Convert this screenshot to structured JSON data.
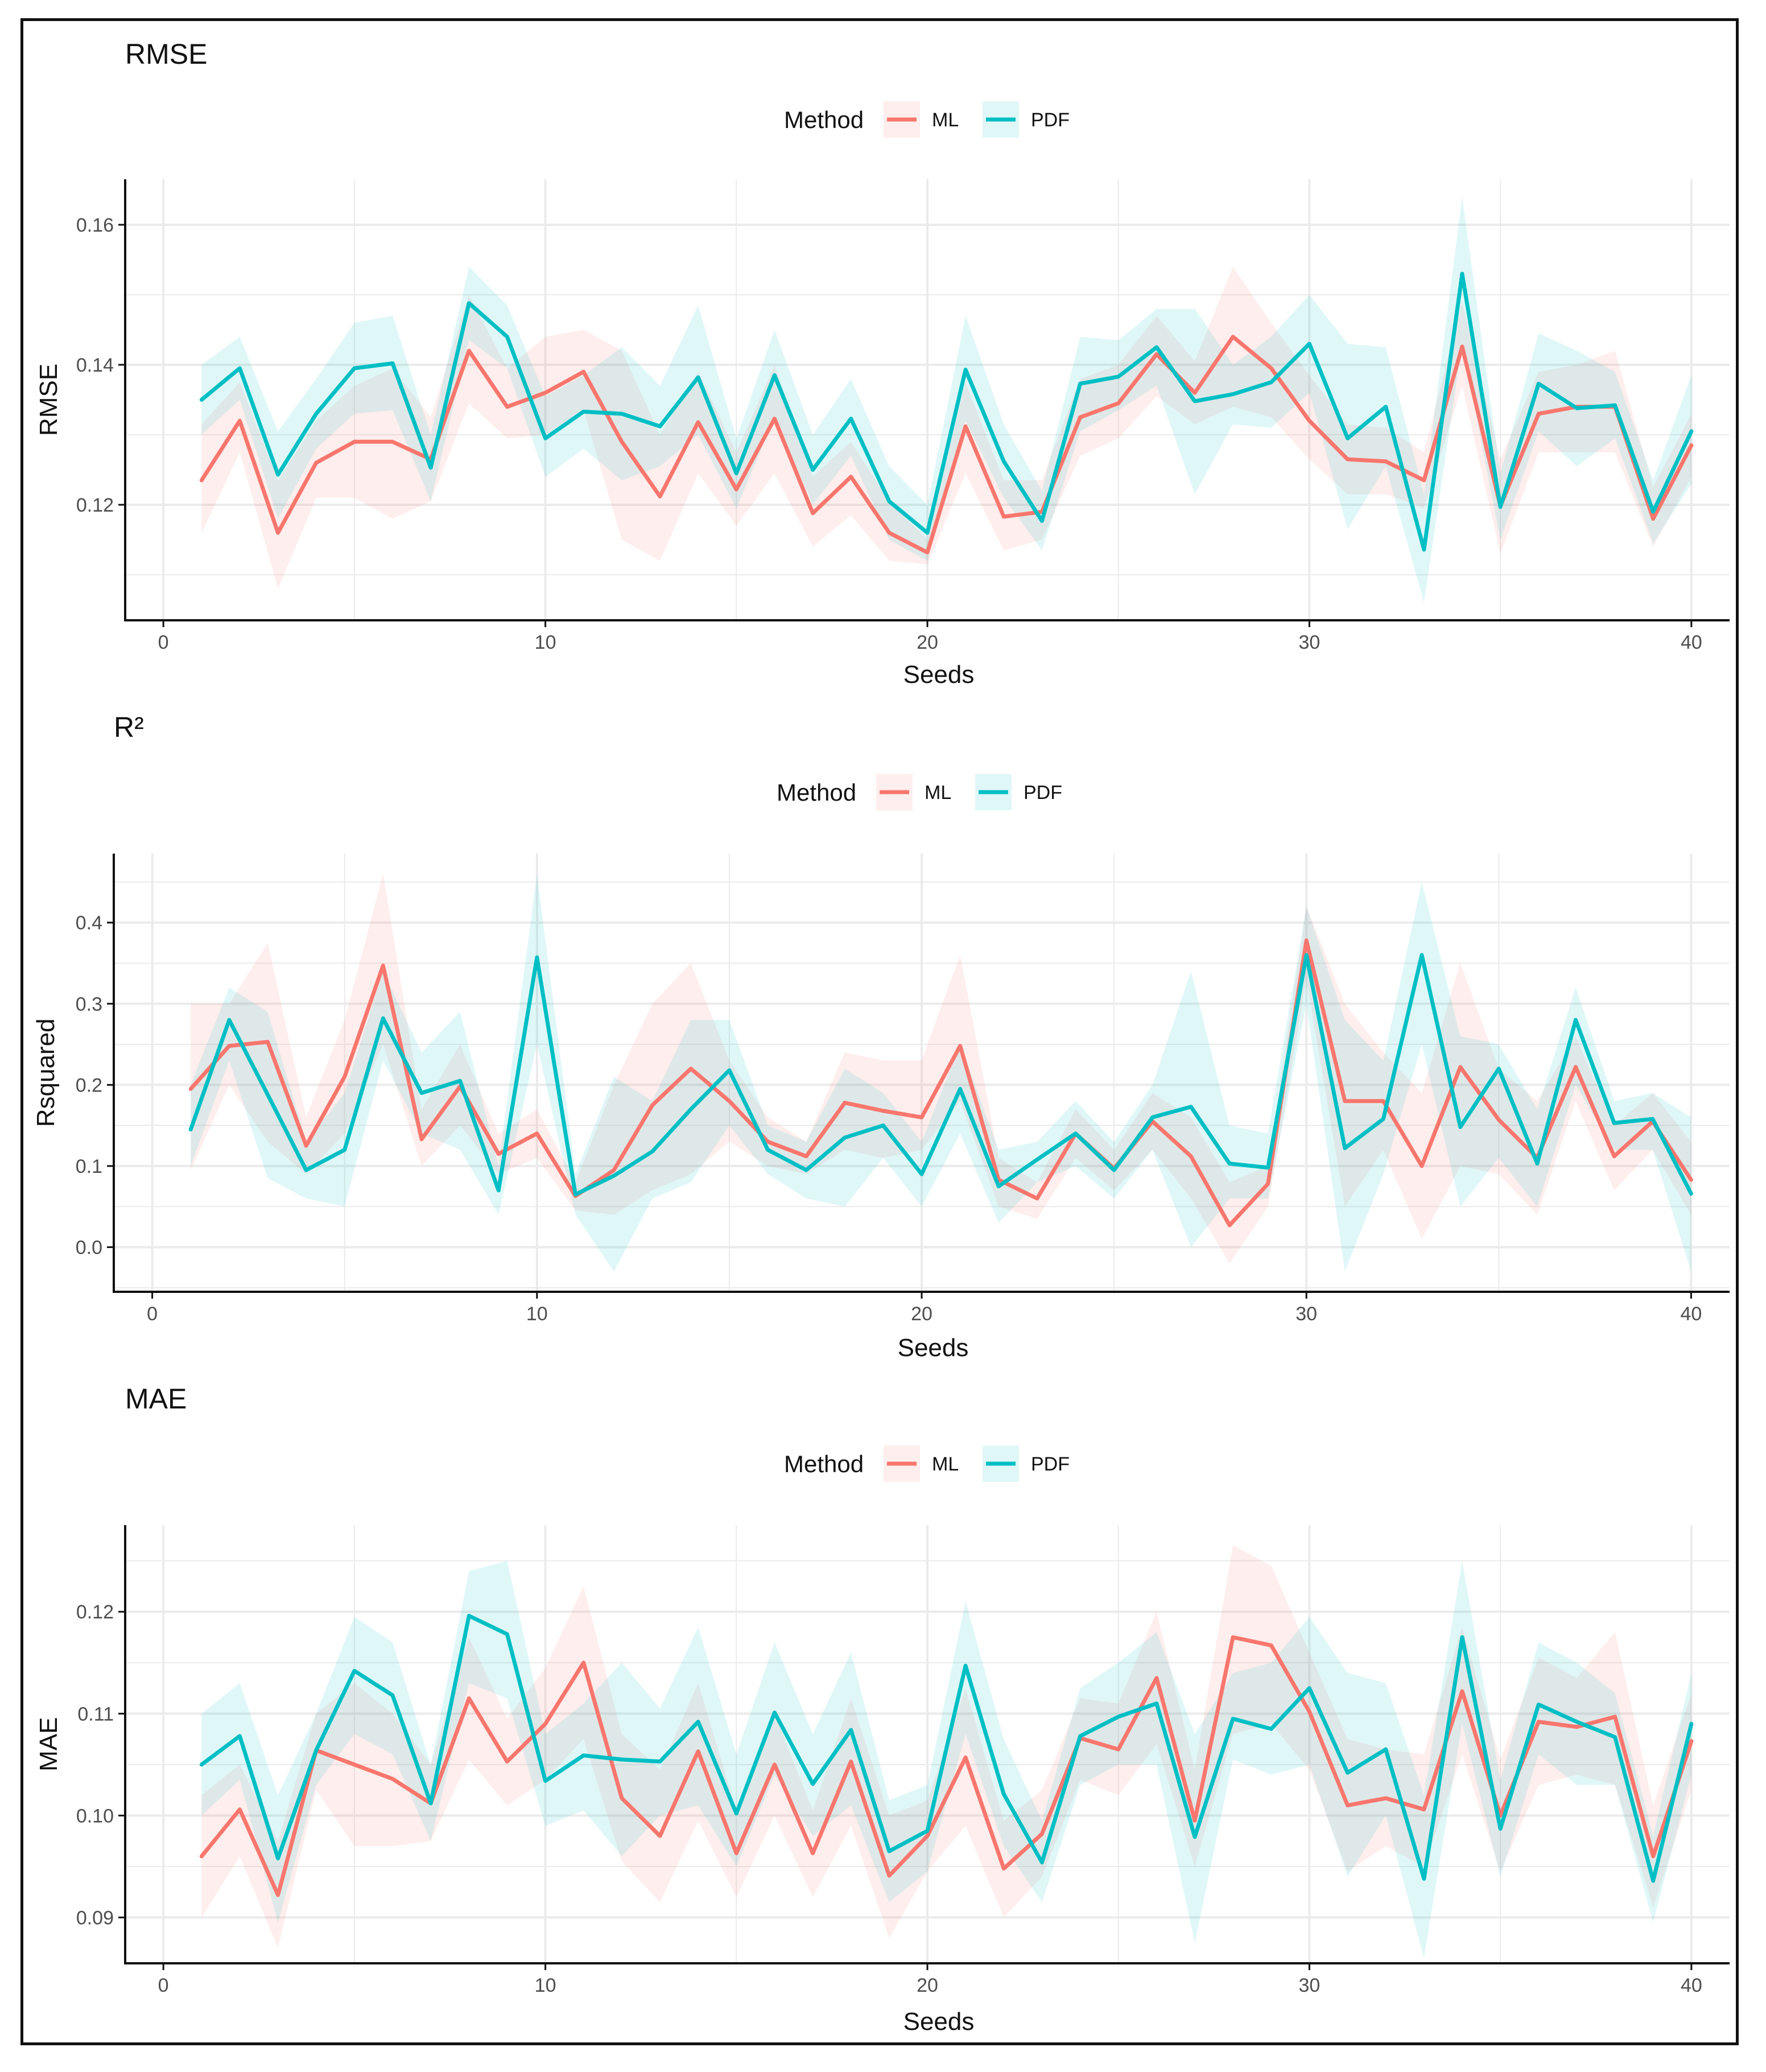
{
  "colors": {
    "ML": "#F8766D",
    "PDF": "#00BFC4",
    "grid": "#EBEBEB",
    "axis": "#111111",
    "tick_text": "#4D4D4D"
  },
  "chart_data": [
    {
      "type": "line",
      "title": "RMSE",
      "xlabel": "Seeds",
      "ylabel": "RMSE",
      "legend_title": "Method",
      "legend_position": "top",
      "xlim": [
        -1,
        41
      ],
      "ylim": [
        0.1035,
        0.1665
      ],
      "xticks": [
        0,
        10,
        20,
        30,
        40
      ],
      "yticks": [
        0.12,
        0.14,
        0.16
      ],
      "ytick_labels": [
        "0.12",
        "0.14",
        "0.16"
      ],
      "x": [
        1,
        2,
        3,
        4,
        5,
        6,
        7,
        8,
        9,
        10,
        11,
        12,
        13,
        14,
        15,
        16,
        17,
        18,
        19,
        20,
        21,
        22,
        23,
        24,
        25,
        26,
        27,
        28,
        29,
        30,
        31,
        32,
        33,
        34,
        35,
        36,
        37,
        38,
        39,
        40
      ],
      "series": [
        {
          "name": "ML",
          "values": [
            0.1235,
            0.132,
            0.116,
            0.126,
            0.129,
            0.129,
            0.1265,
            0.142,
            0.134,
            0.136,
            0.139,
            0.129,
            0.1212,
            0.1318,
            0.1222,
            0.1323,
            0.1188,
            0.124,
            0.116,
            0.1132,
            0.1312,
            0.1183,
            0.119,
            0.1325,
            0.1345,
            0.1415,
            0.136,
            0.144,
            0.1395,
            0.132,
            0.1265,
            0.1262,
            0.1235,
            0.1426,
            0.1198,
            0.133,
            0.134,
            0.134,
            0.118,
            0.1285
          ],
          "lower": [
            0.116,
            0.1275,
            0.108,
            0.121,
            0.121,
            0.118,
            0.1205,
            0.1345,
            0.1295,
            0.13,
            0.1335,
            0.115,
            0.112,
            0.1245,
            0.117,
            0.1245,
            0.114,
            0.1185,
            0.112,
            0.1115,
            0.1245,
            0.1135,
            0.115,
            0.127,
            0.1295,
            0.1355,
            0.1315,
            0.134,
            0.1325,
            0.1265,
            0.1215,
            0.1215,
            0.1195,
            0.137,
            0.113,
            0.1275,
            0.1275,
            0.1275,
            0.114,
            0.124
          ],
          "upper": [
            0.1315,
            0.1375,
            0.1235,
            0.132,
            0.137,
            0.1395,
            0.1325,
            0.15,
            0.1395,
            0.144,
            0.145,
            0.142,
            0.13,
            0.139,
            0.1275,
            0.14,
            0.124,
            0.129,
            0.1205,
            0.115,
            0.1375,
            0.1235,
            0.1235,
            0.138,
            0.14,
            0.147,
            0.1405,
            0.154,
            0.146,
            0.1385,
            0.1315,
            0.131,
            0.1275,
            0.149,
            0.1265,
            0.139,
            0.14,
            0.142,
            0.1225,
            0.133
          ]
        },
        {
          "name": "PDF",
          "values": [
            0.135,
            0.1395,
            0.1243,
            0.133,
            0.1395,
            0.1402,
            0.1253,
            0.1488,
            0.144,
            0.1295,
            0.1333,
            0.133,
            0.1312,
            0.1382,
            0.1245,
            0.1385,
            0.125,
            0.1323,
            0.1205,
            0.116,
            0.1393,
            0.1262,
            0.1177,
            0.1373,
            0.1383,
            0.1425,
            0.1348,
            0.1358,
            0.1375,
            0.143,
            0.1295,
            0.134,
            0.1136,
            0.153,
            0.1197,
            0.1373,
            0.1338,
            0.1342,
            0.119,
            0.1305
          ],
          "lower": [
            0.13,
            0.135,
            0.118,
            0.128,
            0.133,
            0.1335,
            0.1205,
            0.1435,
            0.1395,
            0.124,
            0.128,
            0.1235,
            0.1255,
            0.13,
            0.1195,
            0.1325,
            0.12,
            0.127,
            0.115,
            0.112,
            0.132,
            0.121,
            0.1135,
            0.1305,
            0.1335,
            0.137,
            0.1215,
            0.1315,
            0.131,
            0.136,
            0.1165,
            0.1255,
            0.106,
            0.143,
            0.115,
            0.1305,
            0.1255,
            0.1295,
            0.1145,
            0.123
          ],
          "upper": [
            0.14,
            0.144,
            0.1305,
            0.138,
            0.146,
            0.147,
            0.13,
            0.154,
            0.1485,
            0.1355,
            0.1385,
            0.1425,
            0.137,
            0.1485,
            0.1295,
            0.145,
            0.13,
            0.138,
            0.1255,
            0.12,
            0.147,
            0.1315,
            0.122,
            0.144,
            0.1435,
            0.148,
            0.148,
            0.14,
            0.144,
            0.15,
            0.143,
            0.1425,
            0.1215,
            0.164,
            0.1245,
            0.1445,
            0.142,
            0.139,
            0.1235,
            0.1385
          ]
        }
      ]
    },
    {
      "type": "line",
      "title": "R²",
      "xlabel": "Seeds",
      "ylabel": "Rsquared",
      "legend_title": "Method",
      "legend_position": "top",
      "xlim": [
        -1,
        41
      ],
      "ylim": [
        -0.055,
        0.485
      ],
      "xticks": [
        0,
        10,
        20,
        30,
        40
      ],
      "yticks": [
        0.0,
        0.1,
        0.2,
        0.3,
        0.4
      ],
      "ytick_labels": [
        "0.0",
        "0.1",
        "0.2",
        "0.3",
        "0.4"
      ],
      "x": [
        1,
        2,
        3,
        4,
        5,
        6,
        7,
        8,
        9,
        10,
        11,
        12,
        13,
        14,
        15,
        16,
        17,
        18,
        19,
        20,
        21,
        22,
        23,
        24,
        25,
        26,
        27,
        28,
        29,
        30,
        31,
        32,
        33,
        34,
        35,
        36,
        37,
        38,
        39,
        40
      ],
      "series": [
        {
          "name": "ML",
          "values": [
            0.195,
            0.248,
            0.253,
            0.125,
            0.21,
            0.347,
            0.133,
            0.198,
            0.115,
            0.14,
            0.063,
            0.095,
            0.175,
            0.22,
            0.18,
            0.13,
            0.112,
            0.178,
            0.168,
            0.16,
            0.248,
            0.083,
            0.06,
            0.14,
            0.097,
            0.155,
            0.112,
            0.027,
            0.078,
            0.378,
            0.18,
            0.18,
            0.1,
            0.222,
            0.157,
            0.11,
            0.222,
            0.112,
            0.155,
            0.083
          ],
          "lower": [
            0.095,
            0.2,
            0.13,
            0.09,
            0.14,
            0.25,
            0.1,
            0.15,
            0.09,
            0.11,
            0.045,
            0.04,
            0.07,
            0.09,
            0.13,
            0.1,
            0.09,
            0.12,
            0.11,
            0.12,
            0.18,
            0.05,
            0.035,
            0.11,
            0.07,
            0.12,
            0.06,
            -0.02,
            0.05,
            0.33,
            0.05,
            0.12,
            0.01,
            0.1,
            0.09,
            0.04,
            0.18,
            0.07,
            0.12,
            0.04
          ],
          "upper": [
            0.3,
            0.3,
            0.375,
            0.16,
            0.28,
            0.46,
            0.17,
            0.25,
            0.14,
            0.17,
            0.08,
            0.2,
            0.3,
            0.35,
            0.23,
            0.16,
            0.13,
            0.24,
            0.23,
            0.23,
            0.36,
            0.11,
            0.08,
            0.17,
            0.12,
            0.19,
            0.16,
            0.08,
            0.1,
            0.42,
            0.3,
            0.24,
            0.19,
            0.35,
            0.22,
            0.18,
            0.26,
            0.15,
            0.19,
            0.13
          ]
        },
        {
          "name": "PDF",
          "values": [
            0.145,
            0.28,
            0.188,
            0.095,
            0.12,
            0.282,
            0.19,
            0.205,
            0.07,
            0.357,
            0.065,
            0.088,
            0.118,
            0.17,
            0.218,
            0.12,
            0.095,
            0.135,
            0.15,
            0.09,
            0.195,
            0.075,
            0.108,
            0.14,
            0.095,
            0.16,
            0.173,
            0.103,
            0.098,
            0.36,
            0.122,
            0.158,
            0.36,
            0.148,
            0.22,
            0.103,
            0.28,
            0.153,
            0.158,
            0.066
          ],
          "lower": [
            0.1,
            0.23,
            0.085,
            0.06,
            0.05,
            0.23,
            0.14,
            0.12,
            0.04,
            0.25,
            0.04,
            -0.03,
            0.06,
            0.08,
            0.15,
            0.09,
            0.06,
            0.05,
            0.11,
            0.05,
            0.14,
            0.03,
            0.08,
            0.1,
            0.06,
            0.12,
            0.0,
            0.06,
            0.06,
            0.3,
            -0.03,
            0.09,
            0.25,
            0.05,
            0.11,
            0.05,
            0.2,
            0.12,
            0.12,
            -0.03
          ],
          "upper": [
            0.2,
            0.32,
            0.29,
            0.13,
            0.19,
            0.34,
            0.24,
            0.29,
            0.1,
            0.46,
            0.09,
            0.21,
            0.18,
            0.28,
            0.28,
            0.15,
            0.13,
            0.22,
            0.19,
            0.13,
            0.25,
            0.12,
            0.13,
            0.18,
            0.13,
            0.2,
            0.34,
            0.15,
            0.14,
            0.42,
            0.28,
            0.23,
            0.45,
            0.26,
            0.25,
            0.17,
            0.32,
            0.18,
            0.19,
            0.16
          ]
        }
      ]
    },
    {
      "type": "line",
      "title": "MAE",
      "xlabel": "Seeds",
      "ylabel": "MAE",
      "legend_title": "Method",
      "legend_position": "top",
      "xlim": [
        -1,
        41
      ],
      "ylim": [
        0.0855,
        0.1285
      ],
      "xticks": [
        0,
        10,
        20,
        30,
        40
      ],
      "yticks": [
        0.09,
        0.1,
        0.11,
        0.12
      ],
      "ytick_labels": [
        "0.09",
        "0.10",
        "0.11",
        "0.12"
      ],
      "x": [
        1,
        2,
        3,
        4,
        5,
        6,
        7,
        8,
        9,
        10,
        11,
        12,
        13,
        14,
        15,
        16,
        17,
        18,
        19,
        20,
        21,
        22,
        23,
        24,
        25,
        26,
        27,
        28,
        29,
        30,
        31,
        32,
        33,
        34,
        35,
        36,
        37,
        38,
        39,
        40
      ],
      "series": [
        {
          "name": "ML",
          "values": [
            0.096,
            0.1006,
            0.0922,
            0.1064,
            0.105,
            0.1036,
            0.1012,
            0.1115,
            0.1053,
            0.109,
            0.115,
            0.1017,
            0.098,
            0.1063,
            0.0963,
            0.105,
            0.0963,
            0.1053,
            0.0941,
            0.098,
            0.1057,
            0.0948,
            0.0982,
            0.1076,
            0.1065,
            0.1135,
            0.0995,
            0.1175,
            0.1167,
            0.1102,
            0.101,
            0.1017,
            0.1006,
            0.1122,
            0.1,
            0.1092,
            0.1087,
            0.1097,
            0.096,
            0.1073
          ],
          "lower": [
            0.09,
            0.096,
            0.087,
            0.1025,
            0.097,
            0.097,
            0.0975,
            0.1055,
            0.101,
            0.1035,
            0.1075,
            0.0955,
            0.0915,
            0.0995,
            0.092,
            0.1,
            0.092,
            0.099,
            0.088,
            0.0945,
            0.099,
            0.09,
            0.094,
            0.1035,
            0.102,
            0.107,
            0.095,
            0.108,
            0.109,
            0.1045,
            0.0945,
            0.097,
            0.095,
            0.106,
            0.0945,
            0.103,
            0.104,
            0.103,
            0.091,
            0.1025
          ],
          "upper": [
            0.102,
            0.105,
            0.0975,
            0.11,
            0.113,
            0.11,
            0.105,
            0.1175,
            0.1095,
            0.1145,
            0.1225,
            0.108,
            0.1045,
            0.113,
            0.1005,
            0.11,
            0.1005,
            0.1115,
            0.1,
            0.1015,
            0.1125,
            0.0995,
            0.1025,
            0.1115,
            0.111,
            0.12,
            0.1045,
            0.1265,
            0.1245,
            0.116,
            0.1075,
            0.1065,
            0.106,
            0.1185,
            0.1055,
            0.1155,
            0.1135,
            0.118,
            0.101,
            0.112
          ]
        },
        {
          "name": "PDF",
          "values": [
            0.105,
            0.1078,
            0.0958,
            0.1064,
            0.1142,
            0.1118,
            0.1012,
            0.1196,
            0.1178,
            0.1034,
            0.1059,
            0.1055,
            0.1053,
            0.1092,
            0.1002,
            0.1101,
            0.1031,
            0.1084,
            0.0965,
            0.0985,
            0.1147,
            0.1021,
            0.0954,
            0.1078,
            0.1097,
            0.111,
            0.0979,
            0.1095,
            0.1085,
            0.1125,
            0.1042,
            0.1065,
            0.0938,
            0.1175,
            0.0987,
            0.1109,
            0.1092,
            0.1077,
            0.0936,
            0.109
          ],
          "lower": [
            0.1,
            0.1035,
            0.0895,
            0.103,
            0.108,
            0.106,
            0.0975,
            0.113,
            0.1115,
            0.099,
            0.1005,
            0.096,
            0.1,
            0.101,
            0.095,
            0.104,
            0.098,
            0.101,
            0.0915,
            0.0945,
            0.108,
            0.097,
            0.0915,
            0.103,
            0.105,
            0.105,
            0.0875,
            0.1055,
            0.104,
            0.105,
            0.094,
            0.1,
            0.086,
            0.109,
            0.094,
            0.106,
            0.103,
            0.103,
            0.0895,
            0.104
          ],
          "upper": [
            0.11,
            0.113,
            0.102,
            0.11,
            0.1195,
            0.117,
            0.105,
            0.124,
            0.125,
            0.108,
            0.111,
            0.115,
            0.1105,
            0.1185,
            0.106,
            0.117,
            0.108,
            0.116,
            0.1015,
            0.103,
            0.121,
            0.1075,
            0.0995,
            0.1125,
            0.115,
            0.118,
            0.108,
            0.114,
            0.115,
            0.1195,
            0.114,
            0.113,
            0.102,
            0.125,
            0.1035,
            0.117,
            0.115,
            0.112,
            0.098,
            0.114
          ]
        }
      ]
    }
  ]
}
